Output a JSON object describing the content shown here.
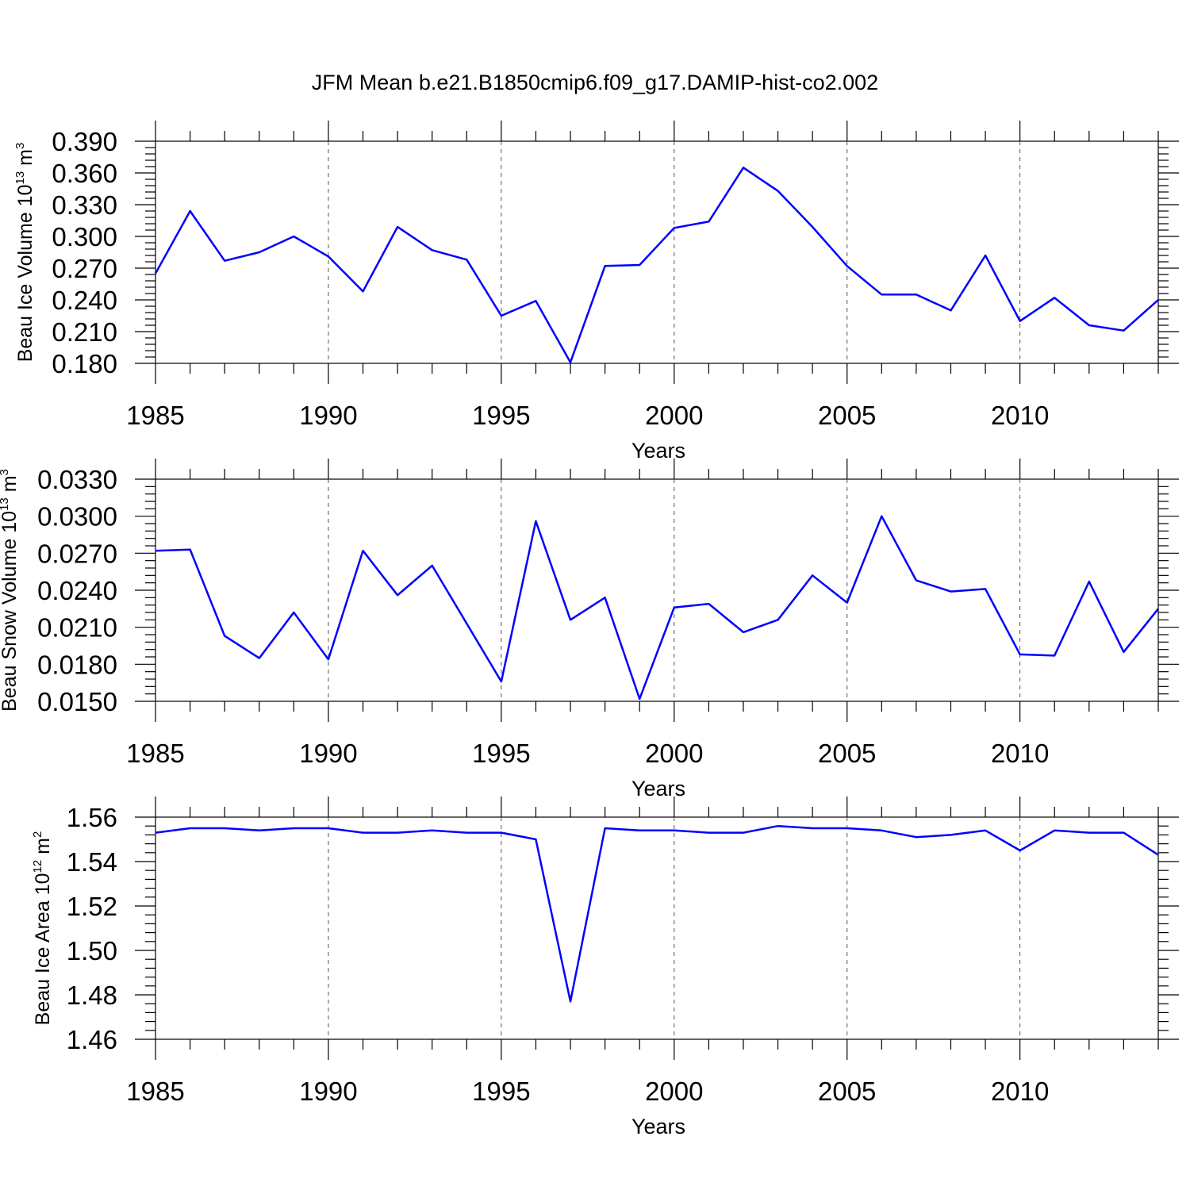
{
  "chart_data": {
    "title": "JFM Mean b.e21.B1850cmip6.f09_g17.DAMIP-hist-co2.002",
    "panels": [
      {
        "type": "line",
        "ylabel_prefix": "Beau Ice Volume 10",
        "ylabel_exp": "13",
        "ylabel_unit": " m",
        "ylabel_unit_exp": "3",
        "xlabel": "Years",
        "xlim": [
          1985,
          2014
        ],
        "ylim": [
          0.18,
          0.39
        ],
        "yticks": [
          "0.180",
          "0.210",
          "0.240",
          "0.270",
          "0.300",
          "0.330",
          "0.360",
          "0.390"
        ],
        "xticks": [
          "1985",
          "1990",
          "1995",
          "2000",
          "2005",
          "2010"
        ],
        "series": [
          {
            "name": "Beau Ice Volume",
            "color": "#0000ff",
            "x": [
              1985,
              1986,
              1987,
              1988,
              1989,
              1990,
              1991,
              1992,
              1993,
              1994,
              1995,
              1996,
              1997,
              1998,
              1999,
              2000,
              2001,
              2002,
              2003,
              2004,
              2005,
              2006,
              2007,
              2008,
              2009,
              2010,
              2011,
              2012,
              2013,
              2014
            ],
            "values": [
              0.265,
              0.324,
              0.277,
              0.285,
              0.3,
              0.281,
              0.248,
              0.309,
              0.287,
              0.278,
              0.225,
              0.239,
              0.181,
              0.272,
              0.273,
              0.308,
              0.314,
              0.365,
              0.343,
              0.309,
              0.272,
              0.245,
              0.245,
              0.23,
              0.282,
              0.22,
              0.242,
              0.216,
              0.211,
              0.24
            ]
          }
        ]
      },
      {
        "type": "line",
        "ylabel_prefix": "Beau Snow Volume 10",
        "ylabel_exp": "13",
        "ylabel_unit": " m",
        "ylabel_unit_exp": "3",
        "xlabel": "Years",
        "xlim": [
          1985,
          2014
        ],
        "ylim": [
          0.015,
          0.033
        ],
        "yticks": [
          "0.0150",
          "0.0180",
          "0.0210",
          "0.0240",
          "0.0270",
          "0.0300",
          "0.0330"
        ],
        "xticks": [
          "1985",
          "1990",
          "1995",
          "2000",
          "2005",
          "2010"
        ],
        "series": [
          {
            "name": "Beau Snow Volume",
            "color": "#0000ff",
            "x": [
              1985,
              1986,
              1987,
              1988,
              1989,
              1990,
              1991,
              1992,
              1993,
              1994,
              1995,
              1996,
              1997,
              1998,
              1999,
              2000,
              2001,
              2002,
              2003,
              2004,
              2005,
              2006,
              2007,
              2008,
              2009,
              2010,
              2011,
              2012,
              2013,
              2014
            ],
            "values": [
              0.0272,
              0.0273,
              0.0203,
              0.0185,
              0.0222,
              0.0184,
              0.0272,
              0.0236,
              0.026,
              0.0213,
              0.0166,
              0.0296,
              0.0216,
              0.0234,
              0.0152,
              0.0226,
              0.0229,
              0.0206,
              0.0216,
              0.0252,
              0.023,
              0.03,
              0.0248,
              0.0239,
              0.0241,
              0.0188,
              0.0187,
              0.0247,
              0.019,
              0.0225
            ]
          }
        ]
      },
      {
        "type": "line",
        "ylabel_prefix": "Beau Ice Area 10",
        "ylabel_exp": "12",
        "ylabel_unit": " m",
        "ylabel_unit_exp": "2",
        "xlabel": "Years",
        "xlim": [
          1985,
          2014
        ],
        "ylim": [
          1.46,
          1.56
        ],
        "yticks": [
          "1.46",
          "1.48",
          "1.50",
          "1.52",
          "1.54",
          "1.56"
        ],
        "xticks": [
          "1985",
          "1990",
          "1995",
          "2000",
          "2005",
          "2010"
        ],
        "series": [
          {
            "name": "Beau Ice Area",
            "color": "#0000ff",
            "x": [
              1985,
              1986,
              1987,
              1988,
              1989,
              1990,
              1991,
              1992,
              1993,
              1994,
              1995,
              1996,
              1997,
              1998,
              1999,
              2000,
              2001,
              2002,
              2003,
              2004,
              2005,
              2006,
              2007,
              2008,
              2009,
              2010,
              2011,
              2012,
              2013,
              2014
            ],
            "values": [
              1.553,
              1.555,
              1.555,
              1.554,
              1.555,
              1.555,
              1.553,
              1.553,
              1.554,
              1.553,
              1.553,
              1.55,
              1.477,
              1.555,
              1.554,
              1.554,
              1.553,
              1.553,
              1.556,
              1.555,
              1.555,
              1.554,
              1.551,
              1.552,
              1.554,
              1.545,
              1.554,
              1.553,
              1.553,
              1.543
            ]
          }
        ]
      }
    ]
  }
}
